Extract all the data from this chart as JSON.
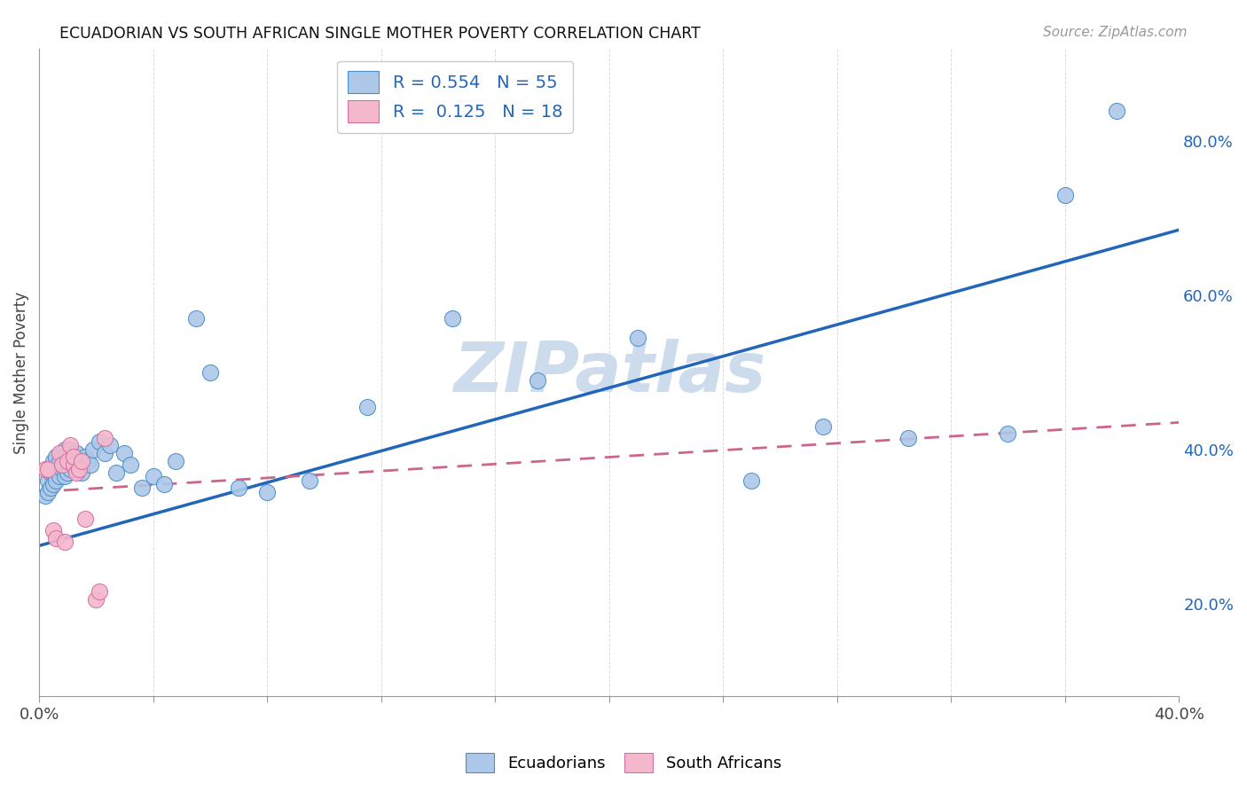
{
  "title": "ECUADORIAN VS SOUTH AFRICAN SINGLE MOTHER POVERTY CORRELATION CHART",
  "source": "Source: ZipAtlas.com",
  "ylabel": "Single Mother Poverty",
  "xlim": [
    0.0,
    0.4
  ],
  "ylim": [
    0.08,
    0.92
  ],
  "right_yticks": [
    0.2,
    0.4,
    0.6,
    0.8
  ],
  "right_yticklabels": [
    "20.0%",
    "40.0%",
    "60.0%",
    "80.0%"
  ],
  "xtick_positions": [
    0.0,
    0.04,
    0.08,
    0.12,
    0.16,
    0.2,
    0.24,
    0.28,
    0.32,
    0.36,
    0.4
  ],
  "xticklabels": [
    "0.0%",
    "",
    "",
    "",
    "",
    "",
    "",
    "",
    "",
    "",
    "40.0%"
  ],
  "blue_R": 0.554,
  "blue_N": 55,
  "pink_R": 0.125,
  "pink_N": 18,
  "blue_color": "#adc8e8",
  "blue_edge_color": "#4a90c8",
  "blue_line_color": "#2266bb",
  "pink_color": "#f4b8cc",
  "pink_edge_color": "#d070a0",
  "pink_line_color": "#cc6688",
  "background_color": "#ffffff",
  "grid_color": "#cccccc",
  "watermark_text": "ZIPatlas",
  "watermark_color": "#ccdcec",
  "blue_x": [
    0.002,
    0.003,
    0.003,
    0.004,
    0.004,
    0.005,
    0.005,
    0.005,
    0.006,
    0.006,
    0.007,
    0.007,
    0.008,
    0.008,
    0.009,
    0.009,
    0.01,
    0.01,
    0.011,
    0.011,
    0.012,
    0.012,
    0.013,
    0.013,
    0.014,
    0.015,
    0.016,
    0.017,
    0.018,
    0.019,
    0.021,
    0.023,
    0.025,
    0.027,
    0.03,
    0.032,
    0.036,
    0.04,
    0.044,
    0.048,
    0.055,
    0.06,
    0.07,
    0.08,
    0.095,
    0.115,
    0.145,
    0.175,
    0.21,
    0.25,
    0.275,
    0.305,
    0.34,
    0.36,
    0.378
  ],
  "blue_y": [
    0.34,
    0.345,
    0.36,
    0.35,
    0.37,
    0.355,
    0.37,
    0.385,
    0.36,
    0.39,
    0.365,
    0.385,
    0.375,
    0.395,
    0.365,
    0.4,
    0.37,
    0.395,
    0.375,
    0.4,
    0.38,
    0.39,
    0.375,
    0.395,
    0.385,
    0.37,
    0.39,
    0.385,
    0.38,
    0.4,
    0.41,
    0.395,
    0.405,
    0.37,
    0.395,
    0.38,
    0.35,
    0.365,
    0.355,
    0.385,
    0.57,
    0.5,
    0.35,
    0.345,
    0.36,
    0.455,
    0.57,
    0.49,
    0.545,
    0.36,
    0.43,
    0.415,
    0.42,
    0.73,
    0.84
  ],
  "pink_x": [
    0.002,
    0.003,
    0.005,
    0.006,
    0.007,
    0.008,
    0.009,
    0.01,
    0.011,
    0.012,
    0.012,
    0.013,
    0.014,
    0.015,
    0.016,
    0.02,
    0.021,
    0.023
  ],
  "pink_y": [
    0.375,
    0.375,
    0.295,
    0.285,
    0.395,
    0.38,
    0.28,
    0.385,
    0.405,
    0.38,
    0.39,
    0.37,
    0.375,
    0.385,
    0.31,
    0.205,
    0.215,
    0.415
  ],
  "blue_line_x0": 0.0,
  "blue_line_y0": 0.275,
  "blue_line_x1": 0.4,
  "blue_line_y1": 0.685,
  "pink_line_x0": 0.0,
  "pink_line_y0": 0.345,
  "pink_line_x1": 0.4,
  "pink_line_y1": 0.435
}
